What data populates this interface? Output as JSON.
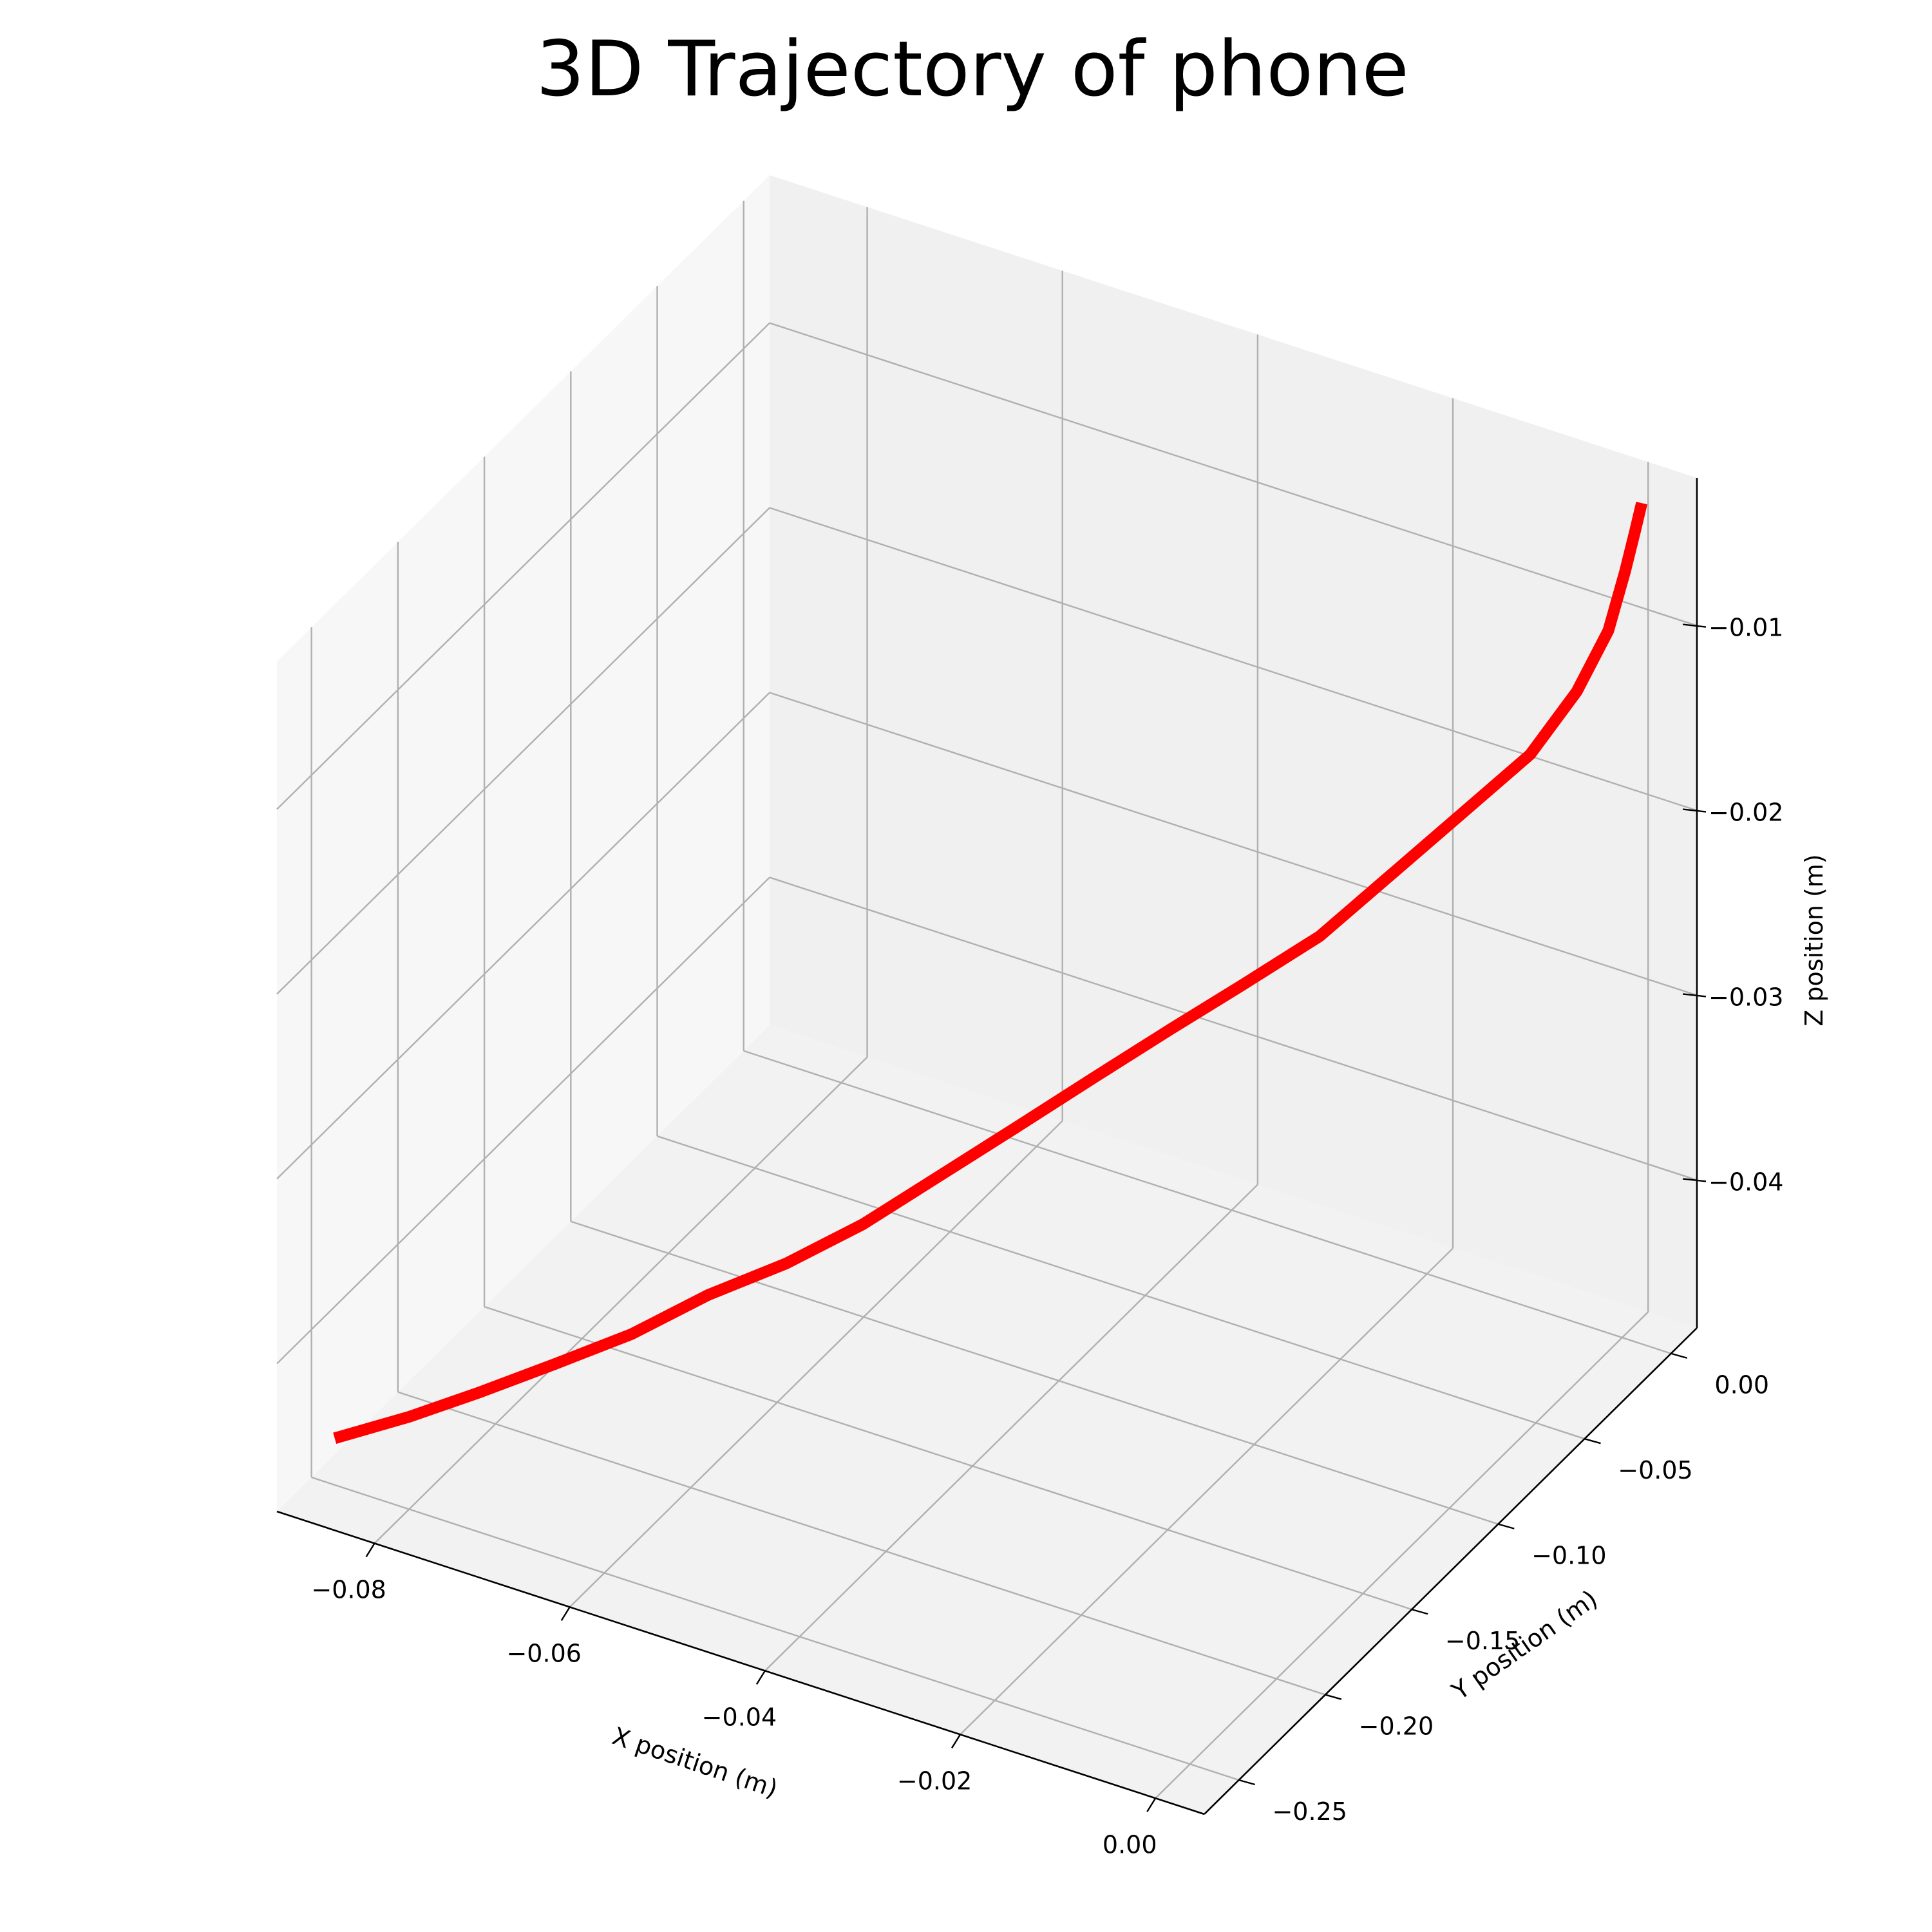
{
  "chart_data": {
    "type": "line",
    "projection": "3d",
    "title": "3D Trajectory of phone",
    "xlabel": "X position (m)",
    "ylabel": "Y position (m)",
    "zlabel": "Z position (m)",
    "grid": true,
    "line_color": "#ff0000",
    "xlim": [
      -0.09,
      0.005
    ],
    "ylim": [
      -0.27,
      0.015
    ],
    "zlim": [
      -0.048,
      -0.002
    ],
    "x_ticks": [
      -0.08,
      -0.06,
      -0.04,
      -0.02,
      0.0
    ],
    "x_tick_labels": [
      "−0.08",
      "−0.06",
      "−0.04",
      "−0.02",
      "0.00"
    ],
    "y_ticks": [
      0.0,
      -0.05,
      -0.1,
      -0.15,
      -0.2,
      -0.25
    ],
    "y_tick_labels": [
      "0.00",
      "−0.05",
      "−0.10",
      "−0.15",
      "−0.20",
      "−0.25"
    ],
    "z_ticks": [
      -0.01,
      -0.02,
      -0.03,
      -0.04
    ],
    "z_tick_labels": [
      "−0.01",
      "−0.02",
      "−0.03",
      "−0.04"
    ],
    "series": [
      {
        "x": [
          -0.0855,
          -0.08,
          -0.075,
          -0.07,
          -0.065,
          -0.06,
          -0.055,
          -0.05,
          -0.045,
          -0.04,
          -0.035,
          -0.03,
          -0.025,
          -0.02,
          -0.015,
          -0.01,
          -0.005,
          -0.002,
          0.0,
          0.001,
          0.0015,
          0.002
        ],
        "y": [
          -0.262,
          -0.25,
          -0.237,
          -0.222,
          -0.206,
          -0.19,
          -0.173,
          -0.157,
          -0.141,
          -0.125,
          -0.108,
          -0.092,
          -0.078,
          -0.062,
          -0.05,
          -0.038,
          -0.025,
          -0.015,
          -0.008,
          -0.004,
          -0.001,
          0.0
        ],
        "z": [
          -0.044,
          -0.043,
          -0.042,
          -0.041,
          -0.04,
          -0.0385,
          -0.0375,
          -0.036,
          -0.034,
          -0.032,
          -0.03,
          -0.028,
          -0.026,
          -0.024,
          -0.021,
          -0.018,
          -0.015,
          -0.012,
          -0.009,
          -0.006,
          -0.004,
          -0.0025
        ]
      }
    ]
  }
}
